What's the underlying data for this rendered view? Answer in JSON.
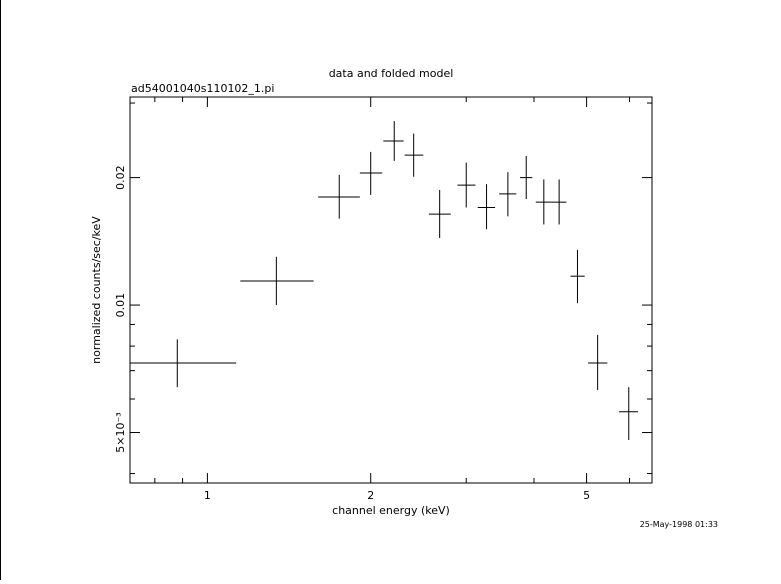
{
  "chart_data": {
    "type": "scatter",
    "title": "data and folded model",
    "subtitle": "ad54001040s110102_1.pi",
    "xlabel": "channel energy (keV)",
    "ylabel": "normalized counts/sec/keV",
    "xscale": "log",
    "yscale": "log",
    "xlim": [
      0.72,
      6.6
    ],
    "ylim": [
      0.0038,
      0.031
    ],
    "x_ticks": [
      {
        "value": 1,
        "label": "1"
      },
      {
        "value": 2,
        "label": "2"
      },
      {
        "value": 5,
        "label": "5"
      }
    ],
    "y_ticks": [
      {
        "value": 0.005,
        "label": "5×10⁻³"
      },
      {
        "value": 0.01,
        "label": "0.01"
      },
      {
        "value": 0.02,
        "label": "0.02"
      }
    ],
    "grid": false,
    "series": [
      {
        "points": [
          {
            "x": 0.88,
            "xlo": 0.72,
            "xhi": 1.13,
            "y": 0.0073,
            "ylo": 0.0064,
            "yhi": 0.0083
          },
          {
            "x": 1.34,
            "xlo": 1.15,
            "xhi": 1.57,
            "y": 0.0114,
            "ylo": 0.01,
            "yhi": 0.013
          },
          {
            "x": 1.75,
            "xlo": 1.6,
            "xhi": 1.91,
            "y": 0.018,
            "ylo": 0.016,
            "yhi": 0.0203
          },
          {
            "x": 2.0,
            "xlo": 1.91,
            "xhi": 2.1,
            "y": 0.0205,
            "ylo": 0.0182,
            "yhi": 0.023
          },
          {
            "x": 2.21,
            "xlo": 2.11,
            "xhi": 2.3,
            "y": 0.0244,
            "ylo": 0.0219,
            "yhi": 0.0272
          },
          {
            "x": 2.4,
            "xlo": 2.31,
            "xhi": 2.5,
            "y": 0.0226,
            "ylo": 0.0201,
            "yhi": 0.0254
          },
          {
            "x": 2.68,
            "xlo": 2.56,
            "xhi": 2.81,
            "y": 0.0164,
            "ylo": 0.0144,
            "yhi": 0.0187
          },
          {
            "x": 3.0,
            "xlo": 2.89,
            "xhi": 3.12,
            "y": 0.0192,
            "ylo": 0.017,
            "yhi": 0.0217
          },
          {
            "x": 3.27,
            "xlo": 3.15,
            "xhi": 3.39,
            "y": 0.017,
            "ylo": 0.0151,
            "yhi": 0.0193
          },
          {
            "x": 3.58,
            "xlo": 3.45,
            "xhi": 3.71,
            "y": 0.0183,
            "ylo": 0.0162,
            "yhi": 0.0206
          },
          {
            "x": 3.87,
            "xlo": 3.77,
            "xhi": 3.97,
            "y": 0.02,
            "ylo": 0.0178,
            "yhi": 0.0225
          },
          {
            "x": 4.17,
            "xlo": 4.03,
            "xhi": 4.31,
            "y": 0.0175,
            "ylo": 0.0155,
            "yhi": 0.0198
          },
          {
            "x": 4.45,
            "xlo": 4.31,
            "xhi": 4.59,
            "y": 0.0175,
            "ylo": 0.0155,
            "yhi": 0.0198
          },
          {
            "x": 4.81,
            "xlo": 4.67,
            "xhi": 4.96,
            "y": 0.0117,
            "ylo": 0.0101,
            "yhi": 0.0135
          },
          {
            "x": 5.24,
            "xlo": 5.03,
            "xhi": 5.46,
            "y": 0.0073,
            "ylo": 0.0063,
            "yhi": 0.0085
          },
          {
            "x": 5.98,
            "xlo": 5.74,
            "xhi": 6.22,
            "y": 0.0056,
            "ylo": 0.0048,
            "yhi": 0.0064
          }
        ]
      }
    ]
  },
  "footer": {
    "timestamp": "25-May-1998 01:33"
  }
}
